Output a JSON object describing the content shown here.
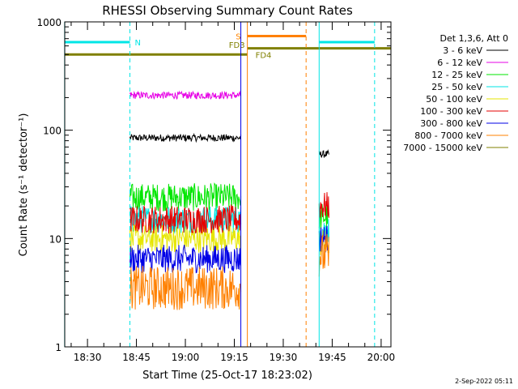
{
  "chart_data": {
    "type": "line",
    "title": "RHESSI Observing Summary Count Rates",
    "xlabel": "Start Time (25-Oct-17 18:23:02)",
    "ylabel": "Count Rate (s⁻¹ detector⁻¹)",
    "y_scale": "log",
    "ylim": [
      1,
      1000
    ],
    "xlim": [
      "18:23:02",
      "20:03:00"
    ],
    "x_ticks": [
      "18:30",
      "18:45",
      "19:00",
      "19:15",
      "19:30",
      "19:45",
      "20:00"
    ],
    "y_ticks": [
      "1",
      "10",
      "100",
      "1000"
    ],
    "legend_title": "Det 1,3,6, Att 0",
    "legend_position": "right",
    "series": [
      {
        "name": "3 - 6 keV",
        "color": "#000000",
        "segments": [
          {
            "x": [
              "18:43",
              "19:17"
            ],
            "y": 85
          },
          {
            "x": [
              "19:41",
              "19:44"
            ],
            "y": 60
          }
        ]
      },
      {
        "name": "6 - 12 keV",
        "color": "#e600e6",
        "segments": [
          {
            "x": [
              "18:43",
              "19:17"
            ],
            "y": 210
          }
        ]
      },
      {
        "name": "12 - 25 keV",
        "color": "#00e600",
        "segments": [
          {
            "x": [
              "18:43",
              "19:17"
            ],
            "y": 24
          },
          {
            "x": [
              "19:41",
              "19:44"
            ],
            "y": 16
          }
        ]
      },
      {
        "name": "25 - 50 keV",
        "color": "#00e6e6",
        "segments": [
          {
            "x": [
              "18:43",
              "19:17"
            ],
            "y": 15
          },
          {
            "x": [
              "19:41",
              "19:44"
            ],
            "y": 12
          }
        ]
      },
      {
        "name": "50 - 100 keV",
        "color": "#e6e600",
        "segments": [
          {
            "x": [
              "18:43",
              "19:17"
            ],
            "y": 10
          },
          {
            "x": [
              "19:41",
              "19:44"
            ],
            "y": 9
          }
        ]
      },
      {
        "name": "100 - 300 keV",
        "color": "#e60000",
        "segments": [
          {
            "x": [
              "18:43",
              "19:17"
            ],
            "y": 15
          },
          {
            "x": [
              "19:41",
              "19:44"
            ],
            "y": 20
          }
        ]
      },
      {
        "name": "300 - 800 keV",
        "color": "#0000e6",
        "segments": [
          {
            "x": [
              "18:43",
              "19:17"
            ],
            "y": 6.5
          },
          {
            "x": [
              "19:41",
              "19:44"
            ],
            "y": 10
          }
        ]
      },
      {
        "name": "800 - 7000 keV",
        "color": "#ff8000",
        "segments": [
          {
            "x": [
              "18:43",
              "19:17"
            ],
            "y": 3.5
          },
          {
            "x": [
              "19:41",
              "19:44"
            ],
            "y": 7
          }
        ]
      },
      {
        "name": "7000 - 15000 keV",
        "color": "#808000",
        "segments": []
      }
    ],
    "flags": [
      {
        "label": "N",
        "color": "#00e6e6",
        "segments": [
          {
            "x": [
              "18:23",
              "18:43"
            ],
            "y": 650
          },
          {
            "x": [
              "19:41",
              "19:58"
            ],
            "y": 650
          }
        ]
      },
      {
        "label": "S",
        "color": "#ff8000",
        "segments": [
          {
            "x": [
              "19:19",
              "19:37"
            ],
            "y": 740
          }
        ]
      },
      {
        "label": "FD3",
        "color": "#808000",
        "segments": [
          {
            "x": [
              "18:23",
              "19:19"
            ],
            "y": 500
          }
        ]
      },
      {
        "label": "FD4",
        "color": "#808000",
        "segments": [
          {
            "x": [
              "19:19",
              "20:03"
            ],
            "y": 570
          }
        ]
      }
    ],
    "vertical_markers": [
      {
        "t": "18:23",
        "color": "#00e6e6",
        "style": "solid"
      },
      {
        "t": "18:43",
        "color": "#00e6e6",
        "style": "dashed"
      },
      {
        "t": "19:17",
        "color": "#0000e6",
        "style": "solid"
      },
      {
        "t": "19:19",
        "color": "#ff8000",
        "style": "solid"
      },
      {
        "t": "19:37",
        "color": "#ff8000",
        "style": "dashed"
      },
      {
        "t": "19:41",
        "color": "#00e6e6",
        "style": "solid"
      },
      {
        "t": "19:58",
        "color": "#00e6e6",
        "style": "dashed"
      }
    ]
  },
  "footer": {
    "timestamp": "2-Sep-2022 05:11"
  }
}
